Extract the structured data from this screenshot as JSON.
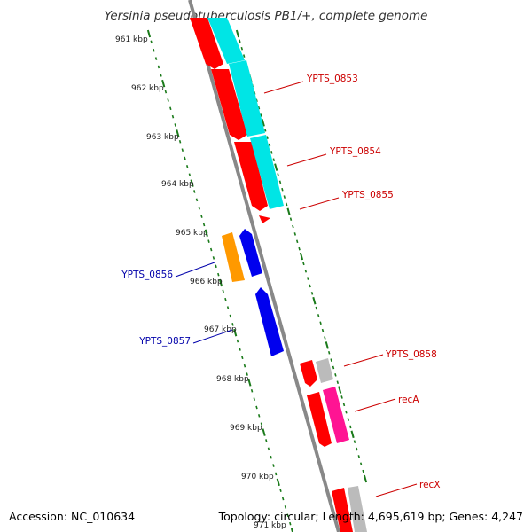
{
  "title": "Yersinia pseudotuberculosis PB1/+, complete genome",
  "footer": {
    "accession": "Accession: NC_010634",
    "summary": "Topology: circular; Length: 4,695,619 bp; Genes: 4,247"
  },
  "axis": {
    "ticks": [
      "961 kbp",
      "962 kbp",
      "963 kbp",
      "964 kbp",
      "965 kbp",
      "966 kbp",
      "967 kbp",
      "968 kbp",
      "969 kbp",
      "970 kbp",
      "971 kbp"
    ]
  },
  "gene_labels": [
    {
      "id": "ypts_0853",
      "text": "YPTS_0853",
      "color": "#cc0000"
    },
    {
      "id": "ypts_0854",
      "text": "YPTS_0854",
      "color": "#cc0000"
    },
    {
      "id": "ypts_0855",
      "text": "YPTS_0855",
      "color": "#cc0000"
    },
    {
      "id": "ypts_0856",
      "text": "YPTS_0856",
      "color": "#0000aa"
    },
    {
      "id": "ypts_0857",
      "text": "YPTS_0857",
      "color": "#0000aa"
    },
    {
      "id": "ypts_0858",
      "text": "YPTS_0858",
      "color": "#cc0000"
    },
    {
      "id": "reca",
      "text": "recA",
      "color": "#cc0000"
    },
    {
      "id": "recx",
      "text": "recX",
      "color": "#cc0000"
    }
  ],
  "colors": {
    "gene_red": "#ff0000",
    "gene_cyan": "#00e5e5",
    "gene_blue": "#0000ee",
    "gene_orange": "#ff9900",
    "gene_magenta": "#ff1493",
    "gene_gray": "#bbbbbb",
    "backbone": "#888888",
    "tick_green": "#1a7a1a"
  }
}
